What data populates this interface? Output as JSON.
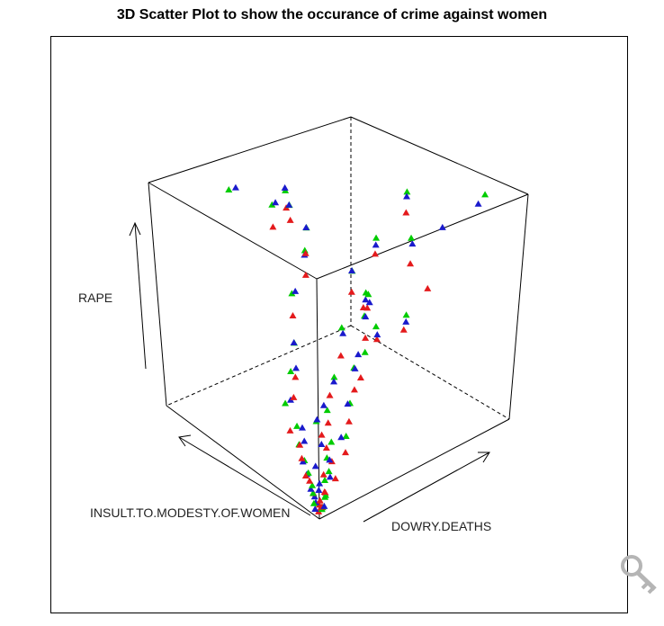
{
  "chart_data": {
    "type": "scatter",
    "projection": "3d",
    "title": "3D Scatter Plot to show the occurance of crime against women",
    "xlabel": "DOWRY.DEATHS",
    "ylabel": "INSULT.TO.MODESTY.OF.WOMEN",
    "zlabel": "RAPE",
    "box": true,
    "grid": false,
    "series": [
      {
        "color": "#e41a1c",
        "points": [
          [
            0.02,
            0.03,
            0.01
          ],
          [
            0.04,
            0.05,
            0.02
          ],
          [
            0.03,
            0.02,
            0.03
          ],
          [
            0.06,
            0.07,
            0.02
          ],
          [
            0.05,
            0.1,
            0.04
          ],
          [
            0.08,
            0.06,
            0.05
          ],
          [
            0.1,
            0.09,
            0.03
          ],
          [
            0.07,
            0.15,
            0.06
          ],
          [
            0.12,
            0.12,
            0.08
          ],
          [
            0.15,
            0.08,
            0.07
          ],
          [
            0.09,
            0.2,
            0.05
          ],
          [
            0.18,
            0.14,
            0.1
          ],
          [
            0.11,
            0.25,
            0.09
          ],
          [
            0.2,
            0.2,
            0.12
          ],
          [
            0.14,
            0.3,
            0.11
          ],
          [
            0.22,
            0.1,
            0.14
          ],
          [
            0.16,
            0.18,
            0.2
          ],
          [
            0.25,
            0.25,
            0.18
          ],
          [
            0.13,
            0.35,
            0.15
          ],
          [
            0.28,
            0.15,
            0.22
          ],
          [
            0.3,
            0.3,
            0.25
          ],
          [
            0.19,
            0.4,
            0.24
          ],
          [
            0.35,
            0.2,
            0.3
          ],
          [
            0.24,
            0.45,
            0.28
          ],
          [
            0.4,
            0.35,
            0.35
          ],
          [
            0.32,
            0.12,
            0.4
          ],
          [
            0.45,
            0.25,
            0.45
          ],
          [
            0.27,
            0.5,
            0.5
          ],
          [
            0.5,
            0.4,
            0.55
          ],
          [
            0.38,
            0.55,
            0.6
          ],
          [
            0.55,
            0.3,
            0.38
          ],
          [
            0.6,
            0.45,
            0.42
          ],
          [
            0.42,
            0.6,
            0.65
          ],
          [
            0.65,
            0.2,
            0.7
          ],
          [
            0.7,
            0.55,
            0.33
          ],
          [
            0.33,
            0.7,
            0.75
          ],
          [
            0.75,
            0.35,
            0.8
          ],
          [
            0.48,
            0.8,
            0.72
          ],
          [
            0.8,
            0.62,
            0.48
          ],
          [
            0.58,
            0.9,
            0.58
          ],
          [
            0.85,
            0.5,
            0.2
          ],
          [
            0.62,
            0.05,
            0.68
          ]
        ]
      },
      {
        "color": "#00cc00",
        "points": [
          [
            0.03,
            0.02,
            0.02
          ],
          [
            0.05,
            0.04,
            0.01
          ],
          [
            0.02,
            0.06,
            0.03
          ],
          [
            0.07,
            0.05,
            0.04
          ],
          [
            0.04,
            0.09,
            0.05
          ],
          [
            0.09,
            0.07,
            0.03
          ],
          [
            0.06,
            0.12,
            0.06
          ],
          [
            0.11,
            0.1,
            0.07
          ],
          [
            0.08,
            0.17,
            0.08
          ],
          [
            0.14,
            0.11,
            0.09
          ],
          [
            0.1,
            0.22,
            0.1
          ],
          [
            0.17,
            0.16,
            0.11
          ],
          [
            0.12,
            0.28,
            0.13
          ],
          [
            0.21,
            0.18,
            0.15
          ],
          [
            0.15,
            0.33,
            0.17
          ],
          [
            0.24,
            0.12,
            0.19
          ],
          [
            0.18,
            0.24,
            0.22
          ],
          [
            0.27,
            0.28,
            0.21
          ],
          [
            0.13,
            0.38,
            0.25
          ],
          [
            0.31,
            0.18,
            0.27
          ],
          [
            0.34,
            0.32,
            0.3
          ],
          [
            0.2,
            0.43,
            0.33
          ],
          [
            0.38,
            0.24,
            0.36
          ],
          [
            0.26,
            0.48,
            0.4
          ],
          [
            0.43,
            0.38,
            0.44
          ],
          [
            0.36,
            0.14,
            0.48
          ],
          [
            0.47,
            0.28,
            0.52
          ],
          [
            0.29,
            0.53,
            0.57
          ],
          [
            0.52,
            0.42,
            0.62
          ],
          [
            0.4,
            0.58,
            0.68
          ],
          [
            0.57,
            0.33,
            0.41
          ],
          [
            0.63,
            0.47,
            0.46
          ],
          [
            0.45,
            0.63,
            0.73
          ],
          [
            0.68,
            0.23,
            0.78
          ],
          [
            0.73,
            0.58,
            0.36
          ],
          [
            0.35,
            0.73,
            0.82
          ],
          [
            0.78,
            0.38,
            0.86
          ],
          [
            0.5,
            0.83,
            0.77
          ],
          [
            0.83,
            0.65,
            0.52
          ],
          [
            0.6,
            0.93,
            0.62
          ],
          [
            0.88,
            0.52,
            0.24
          ],
          [
            0.95,
            0.08,
            0.92
          ],
          [
            0.22,
            0.85,
            0.88
          ]
        ]
      },
      {
        "color": "#1a1acc",
        "points": [
          [
            0.01,
            0.04,
            0.02
          ],
          [
            0.03,
            0.06,
            0.03
          ],
          [
            0.05,
            0.03,
            0.02
          ],
          [
            0.04,
            0.08,
            0.04
          ],
          [
            0.07,
            0.09,
            0.05
          ],
          [
            0.06,
            0.13,
            0.04
          ],
          [
            0.09,
            0.11,
            0.06
          ],
          [
            0.08,
            0.18,
            0.07
          ],
          [
            0.13,
            0.09,
            0.08
          ],
          [
            0.11,
            0.16,
            0.1
          ],
          [
            0.1,
            0.23,
            0.09
          ],
          [
            0.16,
            0.13,
            0.12
          ],
          [
            0.14,
            0.27,
            0.14
          ],
          [
            0.19,
            0.22,
            0.13
          ],
          [
            0.17,
            0.32,
            0.16
          ],
          [
            0.23,
            0.14,
            0.18
          ],
          [
            0.2,
            0.26,
            0.21
          ],
          [
            0.26,
            0.29,
            0.23
          ],
          [
            0.15,
            0.37,
            0.26
          ],
          [
            0.29,
            0.17,
            0.28
          ],
          [
            0.33,
            0.31,
            0.29
          ],
          [
            0.22,
            0.42,
            0.34
          ],
          [
            0.37,
            0.22,
            0.37
          ],
          [
            0.25,
            0.47,
            0.41
          ],
          [
            0.42,
            0.36,
            0.43
          ],
          [
            0.34,
            0.16,
            0.47
          ],
          [
            0.46,
            0.26,
            0.53
          ],
          [
            0.3,
            0.52,
            0.58
          ],
          [
            0.51,
            0.41,
            0.63
          ],
          [
            0.39,
            0.57,
            0.67
          ],
          [
            0.56,
            0.31,
            0.39
          ],
          [
            0.62,
            0.46,
            0.44
          ],
          [
            0.44,
            0.62,
            0.74
          ],
          [
            0.67,
            0.21,
            0.77
          ],
          [
            0.72,
            0.56,
            0.34
          ],
          [
            0.36,
            0.72,
            0.83
          ],
          [
            0.77,
            0.37,
            0.85
          ],
          [
            0.49,
            0.82,
            0.79
          ],
          [
            0.82,
            0.64,
            0.5
          ],
          [
            0.59,
            0.92,
            0.63
          ],
          [
            0.87,
            0.51,
            0.22
          ],
          [
            0.93,
            0.1,
            0.88
          ],
          [
            0.28,
            0.88,
            0.85
          ],
          [
            0.9,
            0.3,
            0.7
          ]
        ]
      }
    ]
  }
}
